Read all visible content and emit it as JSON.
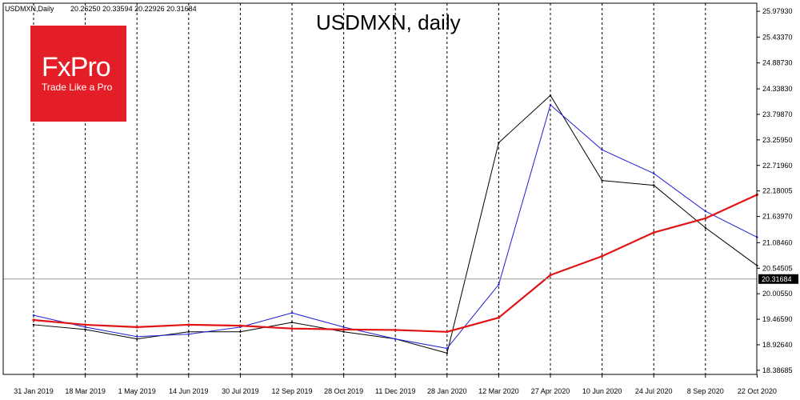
{
  "header": {
    "symbol": "USDMXN,Daily",
    "ohlc": "20.26250 20.33594 20.22926 20.31684"
  },
  "logo": {
    "brand": "FxPro",
    "tagline": "Trade Like a Pro",
    "color": "#e41e26"
  },
  "colors": {
    "price": "#000000",
    "ma_fast": "#1f1fd6",
    "ma_slow": "#e01414",
    "grid": "#000000",
    "current_label_bg": "#000000"
  },
  "chart_data": {
    "type": "line",
    "title": "USDMXN, daily",
    "ylim": [
      18.3,
      26.15
    ],
    "y_ticks": [
      "25.97930",
      "25.43370",
      "24.88730",
      "24.33830",
      "23.79870",
      "23.25950",
      "22.71960",
      "22.18005",
      "21.63970",
      "21.08460",
      "20.54505",
      "20.00550",
      "19.46590",
      "18.92640",
      "18.38685"
    ],
    "x_labels": [
      "31 Jan 2019",
      "18 Mar 2019",
      "1 May 2019",
      "14 Jun 2019",
      "30 Jul 2019",
      "12 Sep 2019",
      "28 Oct 2019",
      "11 Dec 2019",
      "28 Jan 2020",
      "12 Mar 2020",
      "27 Apr 2020",
      "10 Jun 2020",
      "24 Jul 2020",
      "8 Sep 2020",
      "22 Oct 2020"
    ],
    "current_price": "20.31684",
    "current_value": 20.31684,
    "series": [
      {
        "values": [
          {
            "x": "31 Jan 2019",
            "y": 19.35
          },
          {
            "x": "18 Mar 2019",
            "y": 19.25
          },
          {
            "x": "1 May 2019",
            "y": 19.05
          },
          {
            "x": "14 Jun 2019",
            "y": 19.2
          },
          {
            "x": "30 Jul 2019",
            "y": 19.2
          },
          {
            "x": "12 Sep 2019",
            "y": 19.4
          },
          {
            "x": "28 Oct 2019",
            "y": 19.2
          },
          {
            "x": "11 Dec 2019",
            "y": 19.05
          },
          {
            "x": "28 Jan 2020",
            "y": 18.75
          },
          {
            "x": "12 Mar 2020",
            "y": 23.2
          },
          {
            "x": "27 Apr 2020",
            "y": 24.2
          },
          {
            "x": "10 Jun 2020",
            "y": 22.4
          },
          {
            "x": "24 Jul 2020",
            "y": 22.3
          },
          {
            "x": "8 Sep 2020",
            "y": 21.4
          },
          {
            "x": "22 Oct 2020",
            "y": 20.6
          }
        ]
      },
      {
        "values": [
          {
            "x": "31 Jan 2019",
            "y": 19.55
          },
          {
            "x": "18 Mar 2019",
            "y": 19.3
          },
          {
            "x": "1 May 2019",
            "y": 19.1
          },
          {
            "x": "14 Jun 2019",
            "y": 19.15
          },
          {
            "x": "30 Jul 2019",
            "y": 19.3
          },
          {
            "x": "12 Sep 2019",
            "y": 19.6
          },
          {
            "x": "28 Oct 2019",
            "y": 19.3
          },
          {
            "x": "11 Dec 2019",
            "y": 19.05
          },
          {
            "x": "28 Jan 2020",
            "y": 18.85
          },
          {
            "x": "12 Mar 2020",
            "y": 20.2
          },
          {
            "x": "27 Apr 2020",
            "y": 24.0
          },
          {
            "x": "10 Jun 2020",
            "y": 23.05
          },
          {
            "x": "24 Jul 2020",
            "y": 22.55
          },
          {
            "x": "8 Sep 2020",
            "y": 21.75
          },
          {
            "x": "22 Oct 2020",
            "y": 21.2
          }
        ]
      },
      {
        "values": [
          {
            "x": "31 Jan 2019",
            "y": 19.45
          },
          {
            "x": "18 Mar 2019",
            "y": 19.35
          },
          {
            "x": "1 May 2019",
            "y": 19.3
          },
          {
            "x": "14 Jun 2019",
            "y": 19.35
          },
          {
            "x": "30 Jul 2019",
            "y": 19.33
          },
          {
            "x": "12 Sep 2019",
            "y": 19.27
          },
          {
            "x": "28 Oct 2019",
            "y": 19.25
          },
          {
            "x": "11 Dec 2019",
            "y": 19.24
          },
          {
            "x": "28 Jan 2020",
            "y": 19.2
          },
          {
            "x": "12 Mar 2020",
            "y": 19.5
          },
          {
            "x": "27 Apr 2020",
            "y": 20.4
          },
          {
            "x": "10 Jun 2020",
            "y": 20.8
          },
          {
            "x": "24 Jul 2020",
            "y": 21.3
          },
          {
            "x": "8 Sep 2020",
            "y": 21.6
          },
          {
            "x": "22 Oct 2020",
            "y": 22.1
          }
        ]
      }
    ]
  }
}
